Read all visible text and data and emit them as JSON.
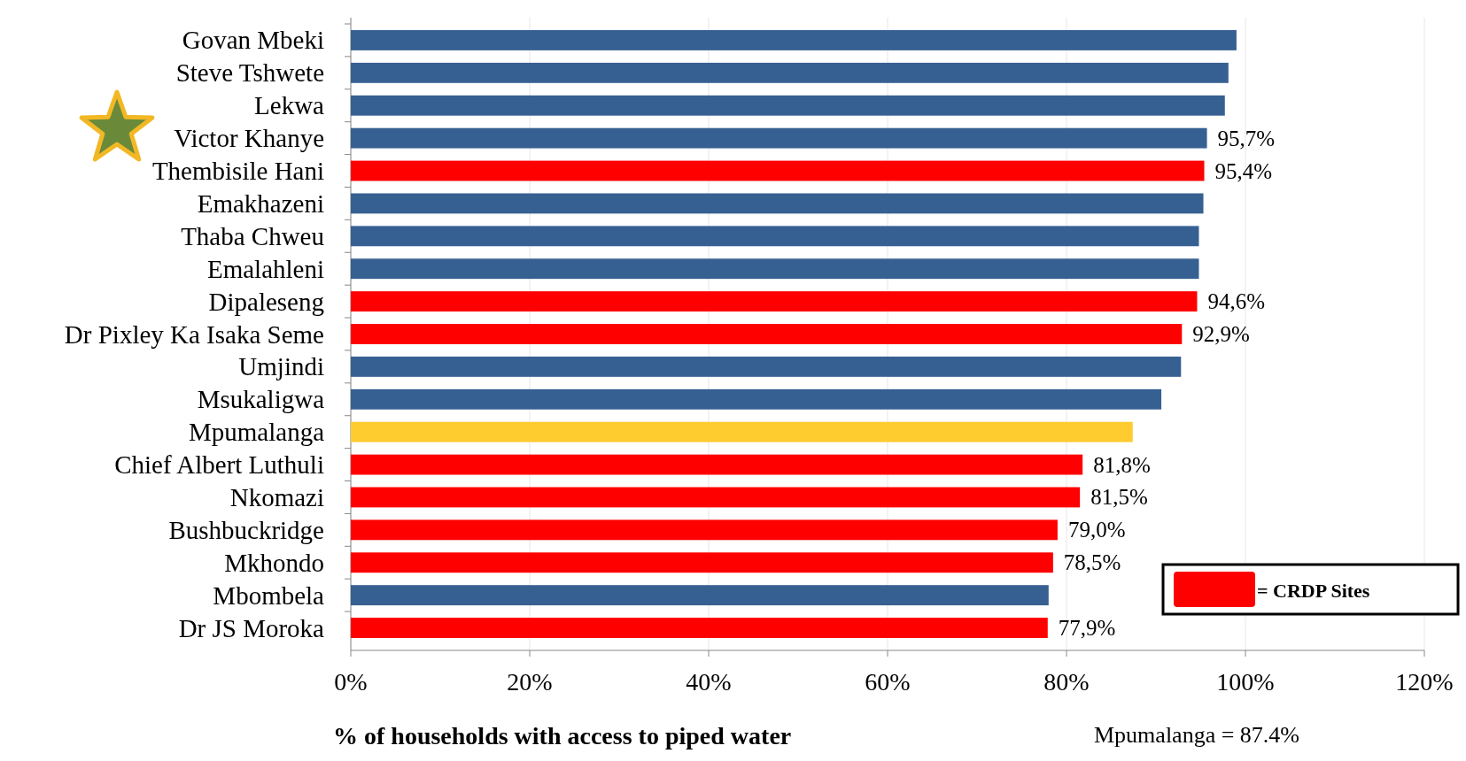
{
  "chart_data": {
    "type": "bar",
    "orientation": "horizontal",
    "xlabel": "% of households with access to piped water",
    "categories": [
      "Govan Mbeki",
      "Steve Tshwete",
      "Lekwa",
      "Victor Khanye",
      "Thembisile Hani",
      "Emakhazeni",
      "Thaba Chweu",
      "Emalahleni",
      "Dipaleseng",
      "Dr Pixley Ka Isaka Seme",
      "Umjindi",
      "Msukaligwa",
      "Mpumalanga",
      "Chief Albert Luthuli",
      "Nkomazi",
      "Bushbuckridge",
      "Mkhondo",
      "Mbombela",
      "Dr JS Moroka"
    ],
    "series": [
      {
        "color": "#376092",
        "values": [
          99.0,
          98.1,
          97.7,
          95.7,
          null,
          95.3,
          94.8,
          94.8,
          null,
          null,
          92.8,
          90.6,
          null,
          null,
          null,
          null,
          null,
          78.0,
          null
        ],
        "value_labels": [
          null,
          null,
          null,
          "95,7%",
          null,
          null,
          null,
          null,
          null,
          null,
          null,
          null,
          null,
          null,
          null,
          null,
          null,
          null,
          null
        ]
      },
      {
        "name": "= CRDP Sites",
        "color": "#ff0000",
        "values": [
          null,
          null,
          null,
          null,
          95.4,
          null,
          null,
          null,
          94.6,
          92.9,
          null,
          null,
          null,
          81.8,
          81.5,
          79.0,
          78.5,
          null,
          77.9
        ],
        "value_labels": [
          null,
          null,
          null,
          null,
          "95,4%",
          null,
          null,
          null,
          "94,6%",
          "92,9%",
          null,
          null,
          null,
          "81,8%",
          "81,5%",
          "79,0%",
          "78,5%",
          null,
          "77,9%"
        ]
      },
      {
        "color": "#ffcc2f",
        "values": [
          null,
          null,
          null,
          null,
          null,
          null,
          null,
          null,
          null,
          null,
          null,
          null,
          87.4,
          null,
          null,
          null,
          null,
          null,
          null
        ]
      }
    ],
    "xlim": [
      0,
      120
    ],
    "xticks": [
      {
        "value": 0,
        "label": "0%"
      },
      {
        "value": 20,
        "label": "20%"
      },
      {
        "value": 40,
        "label": "40%"
      },
      {
        "value": 60,
        "label": "60%"
      },
      {
        "value": 80,
        "label": "80%"
      },
      {
        "value": 100,
        "label": "100%"
      },
      {
        "value": 120,
        "label": "120%"
      }
    ],
    "grid": "x",
    "legend": "bottom right",
    "annotations": [
      "Mpumalanga = 87.4%"
    ]
  }
}
